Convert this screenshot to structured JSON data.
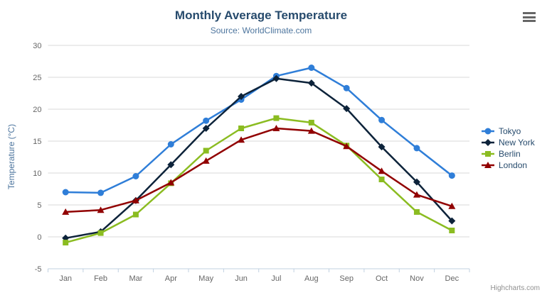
{
  "header": {
    "title": "Monthly Average Temperature",
    "subtitle": "Source: WorldClimate.com"
  },
  "menu": {
    "icon": "hamburger-menu",
    "color": "#666666"
  },
  "credits": {
    "label": "Highcharts.com"
  },
  "colors": {
    "title": "#274b6d",
    "subtitle": "#4d759e",
    "axis_title": "#4d759e",
    "tick_label": "#666666",
    "grid_line": "#d8d8d8",
    "axis_line": "#c0d0e0",
    "legend_text": "#274b6d",
    "credits_text": "#909090"
  },
  "chart_data": {
    "type": "line",
    "title": "Monthly Average Temperature",
    "subtitle": "Source: WorldClimate.com",
    "xlabel": "",
    "ylabel": "Temperature (°C)",
    "categories": [
      "Jan",
      "Feb",
      "Mar",
      "Apr",
      "May",
      "Jun",
      "Jul",
      "Aug",
      "Sep",
      "Oct",
      "Nov",
      "Dec"
    ],
    "ylim": [
      -5,
      30
    ],
    "ytick_step": 5,
    "grid": true,
    "legend_position": "right",
    "series": [
      {
        "name": "Tokyo",
        "color": "#2f7ed8",
        "marker": "circle",
        "values": [
          7.0,
          6.9,
          9.5,
          14.5,
          18.2,
          21.5,
          25.2,
          26.5,
          23.3,
          18.3,
          13.9,
          9.6
        ]
      },
      {
        "name": "New York",
        "color": "#0d233a",
        "marker": "diamond",
        "values": [
          -0.2,
          0.8,
          5.7,
          11.3,
          17.0,
          22.0,
          24.8,
          24.1,
          20.1,
          14.1,
          8.6,
          2.5
        ]
      },
      {
        "name": "Berlin",
        "color": "#8bbc21",
        "marker": "square",
        "values": [
          -0.9,
          0.6,
          3.5,
          8.4,
          13.5,
          17.0,
          18.6,
          17.9,
          14.3,
          9.0,
          3.9,
          1.0
        ]
      },
      {
        "name": "London",
        "color": "#910000",
        "marker": "triangle",
        "values": [
          3.9,
          4.2,
          5.7,
          8.5,
          11.9,
          15.2,
          17.0,
          16.6,
          14.2,
          10.3,
          6.6,
          4.8
        ]
      }
    ]
  }
}
